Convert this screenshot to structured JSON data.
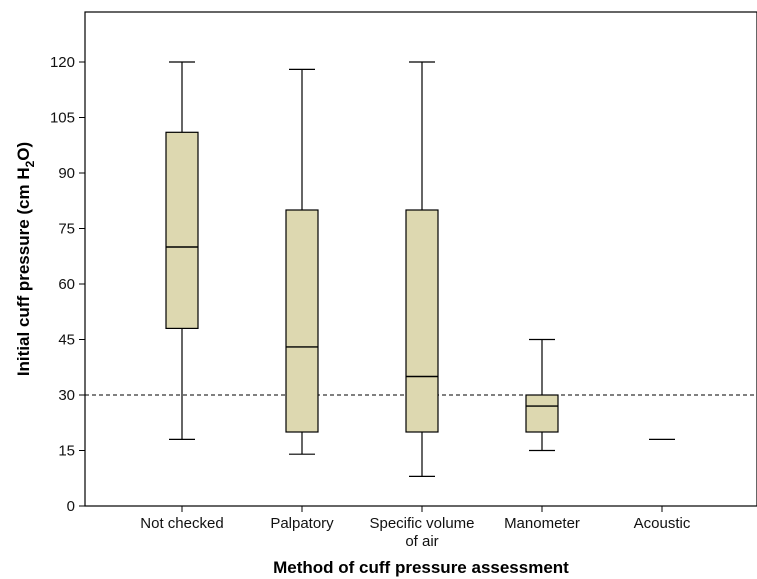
{
  "chart_data": {
    "type": "boxplot",
    "title": "",
    "xlabel": "Method of cuff pressure assessment",
    "ylabel_main": "Initial cuff pressure (cm H",
    "ylabel_sub": "2",
    "ylabel_end": "O)",
    "ylim": [
      0,
      132
    ],
    "yticks": [
      0,
      15,
      30,
      45,
      60,
      75,
      90,
      105,
      120
    ],
    "reference_line": 30,
    "box_color": "#ddd8b0",
    "categories": [
      {
        "label": [
          "Not checked"
        ],
        "min": 18,
        "q1": 48,
        "median": 70,
        "q3": 101,
        "max": 120
      },
      {
        "label": [
          "Palpatory"
        ],
        "min": 14,
        "q1": 20,
        "median": 43,
        "q3": 80,
        "max": 118
      },
      {
        "label": [
          "Specific volume",
          "of air"
        ],
        "min": 8,
        "q1": 20,
        "median": 35,
        "q3": 80,
        "max": 120
      },
      {
        "label": [
          "Manometer"
        ],
        "min": 15,
        "q1": 20,
        "median": 27,
        "q3": 30,
        "max": 45
      },
      {
        "label": [
          "Acoustic"
        ],
        "min": 18,
        "q1": 18,
        "median": 18,
        "q3": 18,
        "max": 18
      }
    ]
  }
}
